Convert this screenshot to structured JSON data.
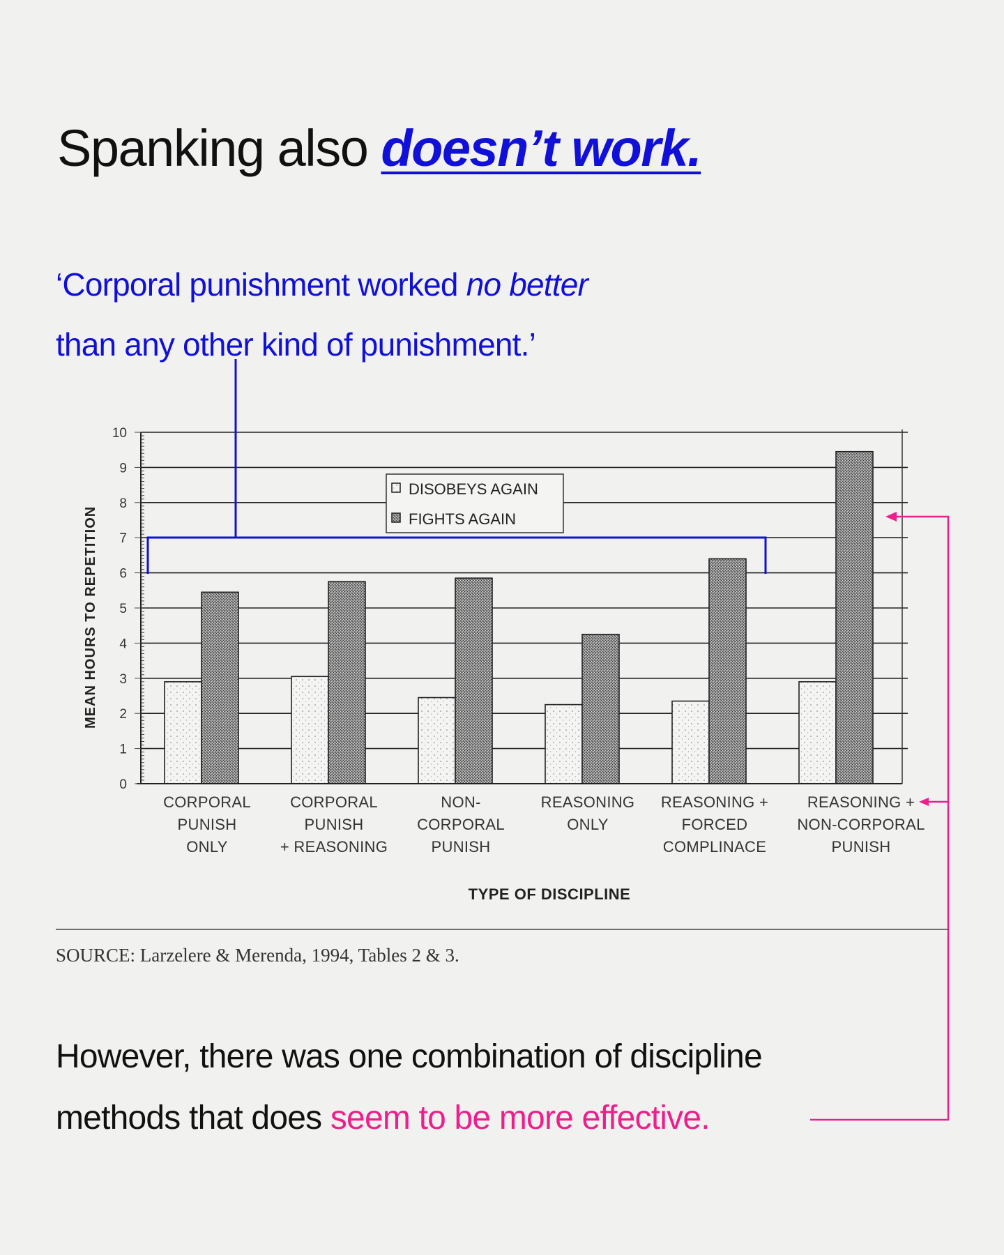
{
  "headline": {
    "prefix": "Spanking also ",
    "emphasis": "doesn’t work."
  },
  "quote": {
    "line1_start": "‘Corporal punishment worked ",
    "line1_emphasis": "no better",
    "line2": "than any other kind of punishment.’"
  },
  "chart_data": {
    "type": "bar",
    "categories": [
      [
        "CORPORAL",
        "PUNISH",
        "ONLY"
      ],
      [
        "CORPORAL",
        "PUNISH",
        "+ REASONING"
      ],
      [
        "NON-",
        "CORPORAL",
        "PUNISH"
      ],
      [
        "REASONING",
        "ONLY"
      ],
      [
        "REASONING +",
        "FORCED",
        "COMPLINACE"
      ],
      [
        "REASONING +",
        "NON-CORPORAL",
        "PUNISH"
      ]
    ],
    "series": [
      {
        "name": "DISOBEYS AGAIN",
        "values": [
          2.9,
          3.05,
          2.45,
          2.25,
          2.35,
          2.9
        ]
      },
      {
        "name": "FIGHTS AGAIN",
        "values": [
          5.45,
          5.75,
          5.85,
          4.25,
          6.4,
          9.45
        ]
      }
    ],
    "xlabel": "TYPE OF DISCIPLINE",
    "ylabel": "MEAN HOURS TO REPETITION",
    "ylim": [
      0,
      10
    ],
    "yticks": [
      "0",
      "1",
      "2",
      "3",
      "4",
      "5",
      "6",
      "7",
      "8",
      "9",
      "10"
    ],
    "grid": true,
    "legend_position": "top-center",
    "colors": {
      "disobeys": "#f4f4f2",
      "fights": "#8a8a8a",
      "bracket": "#1010d8",
      "arrow": "#ee1f8c"
    }
  },
  "source": "SOURCE: Larzelere & Merenda, 1994, Tables 2 & 3.",
  "bottom": {
    "line1": "However, there was one combination of discipline",
    "line2_start": "methods that does ",
    "line2_emphasis": "seem to be more effective."
  }
}
